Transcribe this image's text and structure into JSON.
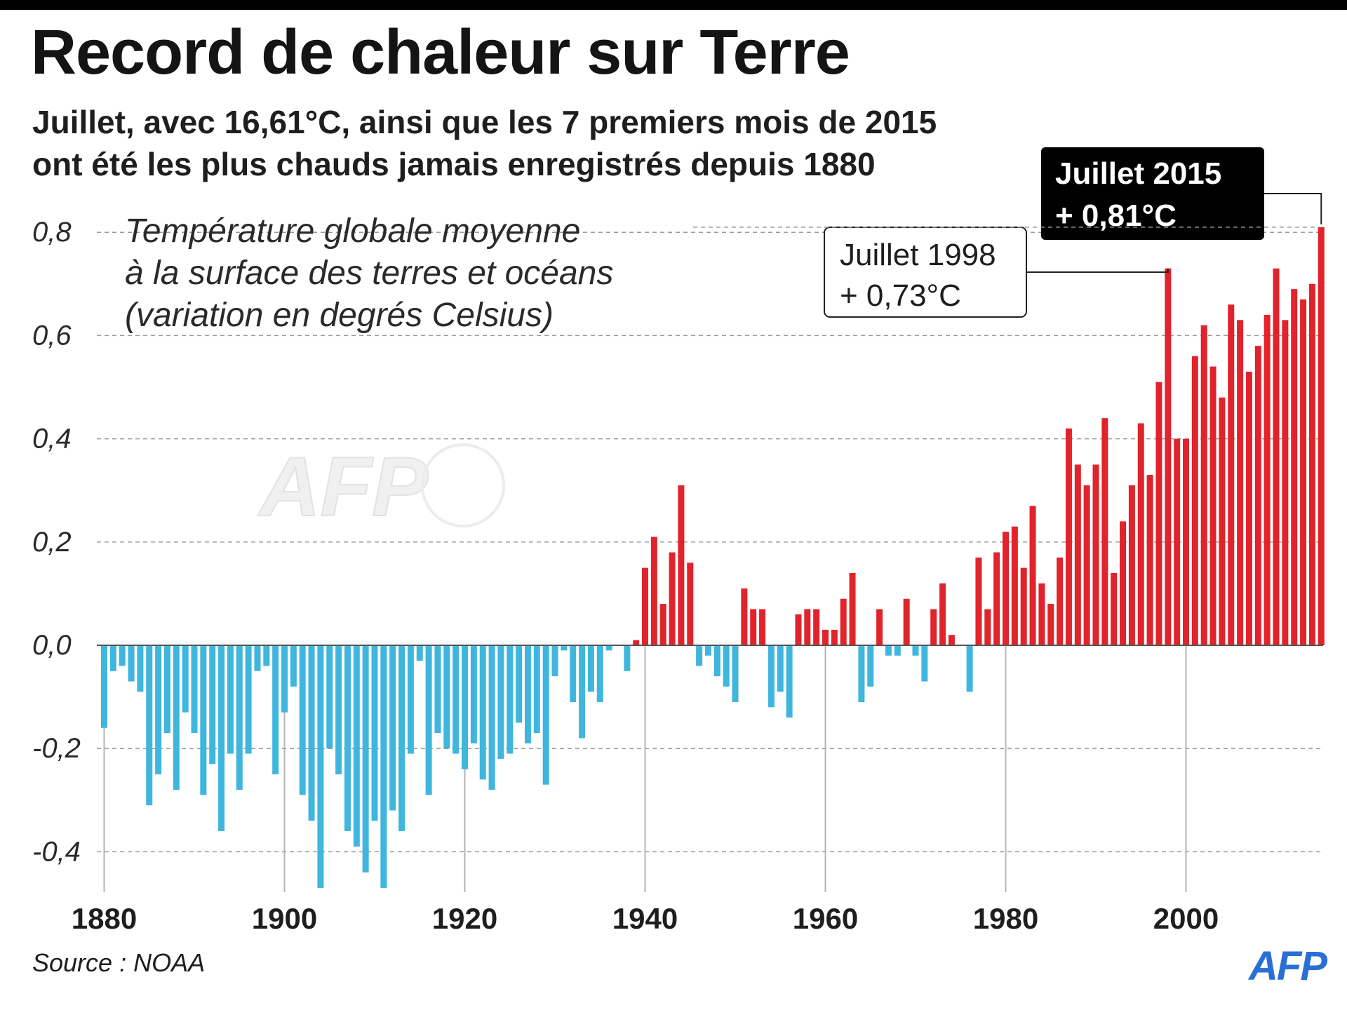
{
  "title": "Record de chaleur sur Terre",
  "subtitle": {
    "line1": "Juillet, avec 16,61°C, ainsi que les 7 premiers mois de 2015",
    "line2": "ont été les plus chauds jamais enregistrés depuis 1880"
  },
  "source": "Source : NOAA",
  "logo_text": "AFP",
  "watermark_text": "AFP",
  "colors": {
    "positive": "#e1232b",
    "negative": "#3fb6de",
    "grid": "#9a9a9a"
  },
  "chart_data": {
    "type": "bar",
    "title": "Température globale moyenne",
    "legend_lines": [
      "Température globale moyenne",
      "à la surface des terres et océans",
      "(variation en degrés Celsius)"
    ],
    "xlabel": "",
    "ylabel": "variation en degrés Celsius",
    "ylim": [
      -0.48,
      0.84
    ],
    "yticks": [
      -0.4,
      -0.2,
      0.0,
      0.2,
      0.4,
      0.6,
      0.8
    ],
    "ytick_labels": [
      "-0,4",
      "-0,2",
      "0,0",
      "0,2",
      "0,4",
      "0,6",
      "0,8"
    ],
    "xticks": [
      1880,
      1900,
      1920,
      1940,
      1960,
      1980,
      2000
    ],
    "xtick_labels": [
      "1880",
      "1900",
      "1920",
      "1940",
      "1960",
      "1980",
      "2000"
    ],
    "x_start": 1880,
    "x_end": 2015,
    "values": [
      -0.16,
      -0.05,
      -0.04,
      -0.07,
      -0.09,
      -0.31,
      -0.25,
      -0.17,
      -0.28,
      -0.13,
      -0.17,
      -0.29,
      -0.23,
      -0.36,
      -0.21,
      -0.28,
      -0.21,
      -0.05,
      -0.04,
      -0.25,
      -0.13,
      -0.08,
      -0.29,
      -0.34,
      -0.47,
      -0.2,
      -0.25,
      -0.36,
      -0.39,
      -0.44,
      -0.34,
      -0.47,
      -0.32,
      -0.36,
      -0.21,
      -0.03,
      -0.29,
      -0.17,
      -0.2,
      -0.21,
      -0.24,
      -0.19,
      -0.26,
      -0.28,
      -0.22,
      -0.21,
      -0.15,
      -0.19,
      -0.17,
      -0.27,
      -0.06,
      -0.01,
      -0.11,
      -0.18,
      -0.09,
      -0.11,
      -0.01,
      0.0,
      -0.05,
      0.01,
      0.15,
      0.21,
      0.08,
      0.18,
      0.31,
      0.16,
      -0.04,
      -0.02,
      -0.06,
      -0.08,
      -0.11,
      0.11,
      0.07,
      0.07,
      -0.12,
      -0.09,
      -0.14,
      0.06,
      0.07,
      0.07,
      0.03,
      0.03,
      0.09,
      0.14,
      -0.11,
      -0.08,
      0.07,
      -0.02,
      -0.02,
      0.09,
      -0.02,
      -0.07,
      0.07,
      0.12,
      0.02,
      0.0,
      -0.09,
      0.17,
      0.07,
      0.18,
      0.22,
      0.23,
      0.15,
      0.27,
      0.12,
      0.08,
      0.17,
      0.42,
      0.35,
      0.31,
      0.35,
      0.44,
      0.14,
      0.24,
      0.31,
      0.43,
      0.33,
      0.51,
      0.73,
      0.4,
      0.4,
      0.56,
      0.62,
      0.54,
      0.48,
      0.66,
      0.63,
      0.53,
      0.58,
      0.64,
      0.73,
      0.63,
      0.69,
      0.67,
      0.7,
      0.81
    ],
    "annotations": [
      {
        "year": 1998,
        "line1": "Juillet 1998",
        "line2": "+ 0,73°C",
        "style": "outlined"
      },
      {
        "year": 2015,
        "line1": "Juillet 2015",
        "line2": "+ 0,81°C",
        "style": "filled"
      }
    ]
  }
}
